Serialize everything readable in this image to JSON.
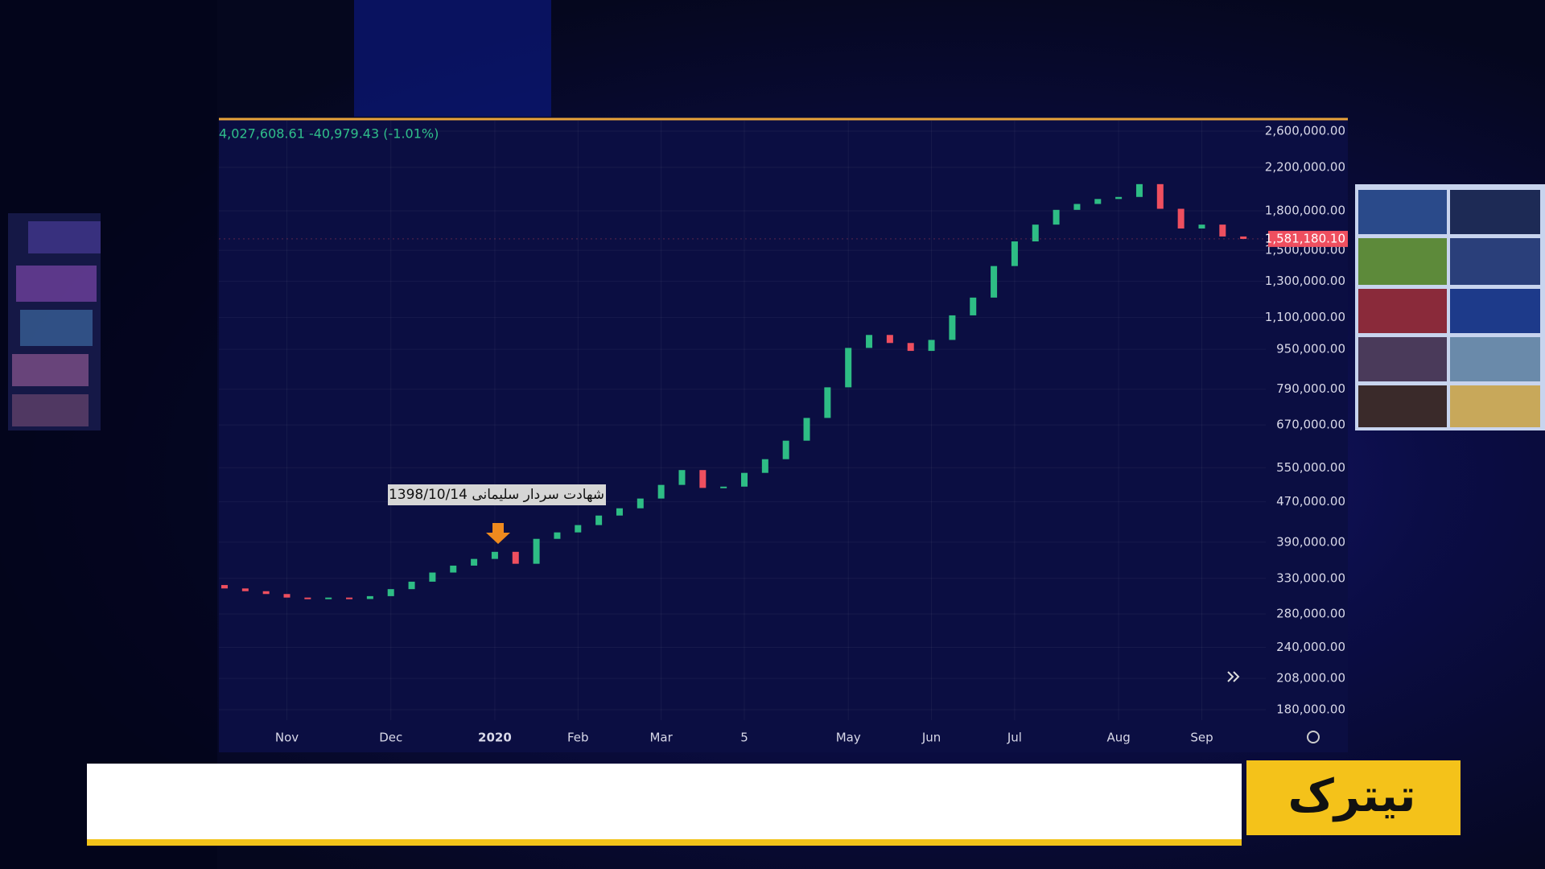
{
  "logo": "تیترک",
  "chart_data": {
    "type": "candlestick",
    "header_text": "4,027,608.61  -40,979.43 (-1.01%)",
    "annotation": "شهادت سردار سلیمانی 1398/10/14",
    "categories": [
      null,
      null,
      null,
      "Nov",
      null,
      null,
      null,
      null,
      "Dec",
      null,
      null,
      null,
      null,
      "2020",
      null,
      null,
      null,
      "Feb",
      null,
      null,
      null,
      "Mar",
      null,
      null,
      null,
      "5",
      null,
      null,
      null,
      null,
      "May",
      null,
      null,
      null,
      "Jun",
      null,
      null,
      null,
      "Jul",
      null,
      null,
      null,
      null,
      "Aug",
      null,
      null,
      null,
      "Sep",
      null,
      null
    ],
    "open": [
      320000,
      315000,
      311000,
      307000,
      302000,
      301000,
      302000,
      300000,
      304000,
      314000,
      325000,
      339000,
      350000,
      361000,
      373000,
      353000,
      396000,
      408000,
      422000,
      441000,
      456000,
      477000,
      508000,
      544000,
      501000,
      504000,
      537000,
      572000,
      623000,
      692000,
      797000,
      956000,
      1015000,
      978000,
      943000,
      992000,
      1111000,
      1206000,
      1395000,
      1563000,
      1689000,
      1808000,
      1858000,
      1901000,
      1919000,
      2036000,
      1817000,
      1659000,
      1689000,
      1599000
    ],
    "close": [
      315000,
      311000,
      307000,
      302000,
      301000,
      302000,
      300000,
      304000,
      314000,
      325000,
      339000,
      350000,
      361000,
      373000,
      353000,
      396000,
      408000,
      422000,
      441000,
      456000,
      477000,
      508000,
      544000,
      501000,
      504000,
      537000,
      572000,
      623000,
      692000,
      797000,
      956000,
      1015000,
      978000,
      943000,
      992000,
      1111000,
      1206000,
      1395000,
      1563000,
      1689000,
      1808000,
      1858000,
      1901000,
      1919000,
      2036000,
      1817000,
      1659000,
      1689000,
      1599000,
      1581000
    ],
    "up_color": "#2ebd85",
    "down_color": "#ef4f5f",
    "log_scale": true,
    "grid": true,
    "ylim": [
      180000,
      2600000
    ],
    "yticks": [
      {
        "value": 2600000,
        "label": "2,600,000.00"
      },
      {
        "value": 2200000,
        "label": "2,200,000.00"
      },
      {
        "value": 1800000,
        "label": "1,800,000.00"
      },
      {
        "value": 1500000,
        "label": "1,500,000.00"
      },
      {
        "value": 1300000,
        "label": "1,300,000.00"
      },
      {
        "value": 1100000,
        "label": "1,100,000.00"
      },
      {
        "value": 950000,
        "label": "950,000.00"
      },
      {
        "value": 790000,
        "label": "790,000.00"
      },
      {
        "value": 670000,
        "label": "670,000.00"
      },
      {
        "value": 550000,
        "label": "550,000.00"
      },
      {
        "value": 470000,
        "label": "470,000.00"
      },
      {
        "value": 390000,
        "label": "390,000.00"
      },
      {
        "value": 330000,
        "label": "330,000.00"
      },
      {
        "value": 280000,
        "label": "280,000.00"
      },
      {
        "value": 240000,
        "label": "240,000.00"
      },
      {
        "value": 208000,
        "label": "208,000.00"
      },
      {
        "value": 180000,
        "label": "180,000.00"
      }
    ],
    "last_price": {
      "value": 1581180.1,
      "label": "1,581,180.10"
    }
  }
}
